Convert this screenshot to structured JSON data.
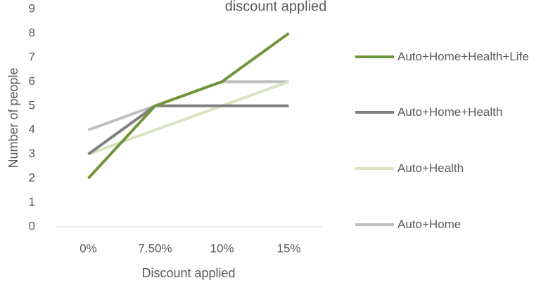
{
  "chart_data": {
    "type": "line",
    "title": "discount applied",
    "x_label": "Discount applied",
    "y_label": "Number of people",
    "categories": [
      "0%",
      "7.50%",
      "10%",
      "15%"
    ],
    "series": [
      {
        "name": "Auto+Home+Health+Life",
        "color": "#70963a",
        "values": [
          2,
          5,
          6,
          8
        ]
      },
      {
        "name": "Auto+Home+Health",
        "color": "#7f7f7f",
        "values": [
          3,
          5,
          5,
          5
        ]
      },
      {
        "name": "Auto+Health",
        "color": "#d7e4bd",
        "values": [
          3,
          4,
          5,
          6
        ]
      },
      {
        "name": "Auto+Home",
        "color": "#bfbfbf",
        "values": [
          4,
          5,
          6,
          6
        ]
      }
    ],
    "ylim": [
      0,
      9
    ],
    "yticks": [
      0,
      1,
      2,
      3,
      4,
      5,
      6,
      7,
      8,
      9
    ],
    "grid": false,
    "legend": "right"
  }
}
